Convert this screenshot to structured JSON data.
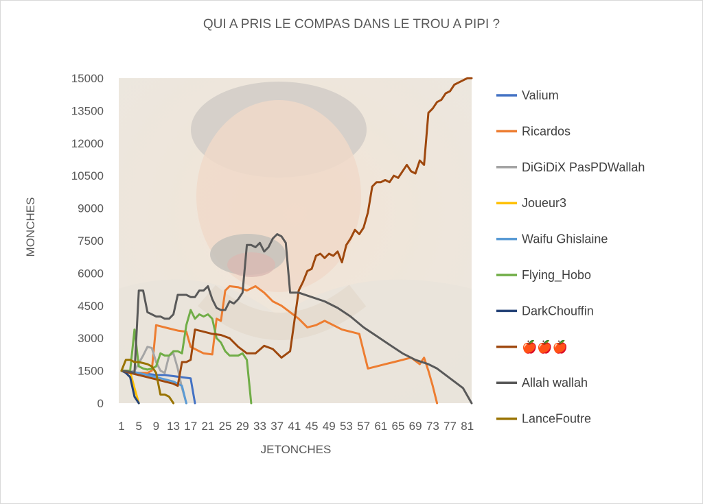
{
  "chart_data": {
    "type": "line",
    "title": "QUI A PRIS LE COMPAS DANS LE TROU A PIPI ?",
    "xlabel": "JETONCHES",
    "ylabel": "MONCHES",
    "ylim": [
      0,
      15000
    ],
    "yticks": [
      "0",
      "1500",
      "3000",
      "4500",
      "6000",
      "7500",
      "9000",
      "10500",
      "12000",
      "13500",
      "15000"
    ],
    "xlim": [
      1,
      82
    ],
    "xtick_labels": [
      "1",
      "5",
      "9",
      "13",
      "17",
      "21",
      "25",
      "29",
      "33",
      "37",
      "41",
      "45",
      "49",
      "53",
      "57",
      "61",
      "65",
      "69",
      "73",
      "77",
      "81"
    ],
    "grid": false,
    "legend_position": "right",
    "series": [
      {
        "name": "Valium",
        "color": "#4472C4",
        "x": [
          1,
          3,
          5,
          7,
          9,
          11,
          13,
          15,
          17,
          18
        ],
        "y": [
          1500,
          1400,
          1300,
          1350,
          1300,
          1300,
          1250,
          1200,
          1150,
          0
        ]
      },
      {
        "name": "Ricardos",
        "color": "#ED7D31",
        "x": [
          1,
          3,
          5,
          7,
          8,
          9,
          10,
          12,
          14,
          16,
          17,
          18,
          20,
          22,
          23,
          24,
          25,
          26,
          28,
          30,
          32,
          34,
          36,
          38,
          40,
          42,
          44,
          46,
          48,
          50,
          52,
          54,
          56,
          58,
          60,
          62,
          64,
          66,
          68,
          70,
          71,
          72,
          73,
          74
        ],
        "y": [
          1500,
          1450,
          1400,
          1400,
          1500,
          3600,
          3550,
          3450,
          3350,
          3300,
          2600,
          2500,
          2300,
          2250,
          3900,
          3800,
          5200,
          5400,
          5350,
          5200,
          5400,
          5100,
          4700,
          4500,
          4200,
          3900,
          3500,
          3600,
          3800,
          3600,
          3400,
          3300,
          3200,
          1600,
          1700,
          1800,
          1900,
          2000,
          2100,
          1800,
          2100,
          1500,
          800,
          0
        ]
      },
      {
        "name": "DiGiDiX PasPDWallah",
        "color": "#A5A5A5",
        "x": [
          1,
          3,
          4,
          6,
          7,
          8,
          9,
          10,
          11,
          12,
          13,
          14,
          15,
          16
        ],
        "y": [
          1500,
          1450,
          1500,
          2200,
          2600,
          2550,
          1900,
          1500,
          1400,
          2200,
          2300,
          1600,
          700,
          0
        ]
      },
      {
        "name": "Joueur3",
        "color": "#FFC000",
        "x": [
          1,
          2,
          3,
          4,
          5
        ],
        "y": [
          1500,
          1500,
          1450,
          700,
          0
        ]
      },
      {
        "name": "Waifu Ghislaine",
        "color": "#5B9BD5",
        "x": [
          1,
          3,
          5,
          7,
          9,
          11,
          13,
          14,
          15,
          16
        ],
        "y": [
          1500,
          1450,
          1400,
          1300,
          1200,
          1100,
          1000,
          900,
          800,
          0
        ]
      },
      {
        "name": "Flying_Hobo",
        "color": "#70AD47",
        "x": [
          1,
          3,
          4,
          5,
          6,
          7,
          8,
          9,
          10,
          11,
          12,
          13,
          14,
          15,
          16,
          17,
          18,
          19,
          20,
          21,
          22,
          23,
          24,
          25,
          26,
          27,
          28,
          29,
          30,
          31
        ],
        "y": [
          1500,
          1500,
          3400,
          1700,
          1600,
          1550,
          1600,
          1700,
          2300,
          2200,
          2200,
          2400,
          2400,
          2300,
          3600,
          4300,
          3900,
          4100,
          4000,
          4100,
          3900,
          3000,
          2800,
          2400,
          2200,
          2200,
          2200,
          2300,
          2000,
          0
        ]
      },
      {
        "name": "DarkChouffin",
        "color": "#264478",
        "x": [
          1,
          2,
          3,
          4,
          5
        ],
        "y": [
          1500,
          1400,
          1200,
          300,
          0
        ]
      },
      {
        "name": "🍎🍎🍎",
        "color": "#9E480E",
        "x": [
          1,
          3,
          5,
          7,
          9,
          11,
          13,
          14,
          15,
          16,
          17,
          18,
          20,
          22,
          24,
          26,
          28,
          30,
          32,
          34,
          36,
          38,
          40,
          42,
          43,
          44,
          45,
          46,
          47,
          48,
          49,
          50,
          51,
          52,
          53,
          54,
          55,
          56,
          57,
          58,
          59,
          60,
          61,
          62,
          63,
          64,
          65,
          66,
          67,
          68,
          69,
          70,
          71,
          72,
          73,
          74,
          75,
          76,
          77,
          78,
          79,
          80,
          81,
          82
        ],
        "y": [
          1500,
          1400,
          1300,
          1200,
          1100,
          1000,
          900,
          800,
          1900,
          1900,
          2000,
          3400,
          3300,
          3200,
          3150,
          3000,
          2600,
          2300,
          2300,
          2650,
          2500,
          2100,
          2400,
          5200,
          5600,
          6100,
          6200,
          6800,
          6900,
          6700,
          6900,
          6800,
          7000,
          6500,
          7300,
          7600,
          8000,
          7800,
          8100,
          8800,
          10000,
          10200,
          10200,
          10300,
          10200,
          10500,
          10400,
          10700,
          11000,
          10700,
          10600,
          11200,
          11000,
          13400,
          13600,
          13900,
          14000,
          14300,
          14400,
          14700,
          14800,
          14900,
          15000,
          15000
        ]
      },
      {
        "name": "Allah wallah",
        "color": "#595959",
        "x": [
          1,
          3,
          4,
          5,
          6,
          7,
          8,
          9,
          10,
          11,
          12,
          13,
          14,
          15,
          16,
          17,
          18,
          19,
          20,
          21,
          22,
          23,
          24,
          25,
          26,
          27,
          28,
          29,
          30,
          31,
          32,
          33,
          34,
          35,
          36,
          37,
          38,
          39,
          40,
          41,
          42,
          45,
          48,
          51,
          54,
          57,
          60,
          63,
          66,
          69,
          72,
          74,
          76,
          78,
          80,
          82
        ],
        "y": [
          1500,
          1450,
          1400,
          5200,
          5200,
          4200,
          4100,
          4000,
          4000,
          3900,
          3900,
          4100,
          5000,
          5000,
          5000,
          4900,
          4900,
          5200,
          5200,
          5400,
          4800,
          4400,
          4300,
          4300,
          4700,
          4600,
          4800,
          5100,
          7300,
          7300,
          7200,
          7400,
          7000,
          7200,
          7600,
          7800,
          7700,
          7400,
          5100,
          5100,
          5100,
          4900,
          4700,
          4400,
          4000,
          3500,
          3100,
          2700,
          2300,
          2000,
          1800,
          1600,
          1300,
          1000,
          700,
          0
        ]
      },
      {
        "name": "LanceFoutre",
        "color": "#997300",
        "x": [
          1,
          2,
          3,
          4,
          5,
          6,
          7,
          8,
          9,
          10,
          11,
          12,
          13
        ],
        "y": [
          1500,
          2000,
          2000,
          1900,
          1900,
          1850,
          1800,
          1700,
          1400,
          400,
          400,
          300,
          0
        ]
      }
    ]
  }
}
